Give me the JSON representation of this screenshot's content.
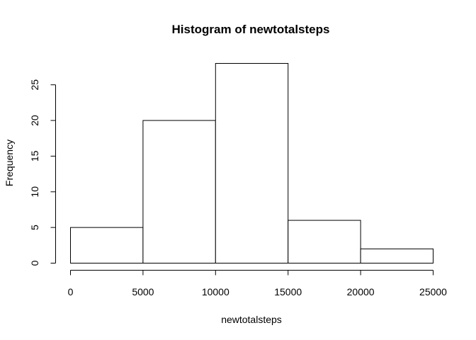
{
  "chart_data": {
    "type": "bar",
    "title": "Histogram of newtotalsteps",
    "xlabel": "newtotalsteps",
    "ylabel": "Frequency",
    "bins": [
      {
        "from": 0,
        "to": 5000,
        "count": 5
      },
      {
        "from": 5000,
        "to": 10000,
        "count": 20
      },
      {
        "from": 10000,
        "to": 15000,
        "count": 28
      },
      {
        "from": 15000,
        "to": 20000,
        "count": 6
      },
      {
        "from": 20000,
        "to": 25000,
        "count": 2
      }
    ],
    "x_ticks": [
      0,
      5000,
      10000,
      15000,
      20000,
      25000
    ],
    "x_tick_labels": [
      "0",
      "5000",
      "10000",
      "15000",
      "20000",
      "25000"
    ],
    "y_ticks": [
      0,
      5,
      10,
      15,
      20,
      25
    ],
    "y_tick_labels": [
      "0",
      "5",
      "10",
      "15",
      "20",
      "25"
    ],
    "xlim": [
      0,
      25000
    ],
    "ylim": [
      0,
      28
    ],
    "grid": false,
    "colors": {
      "bar_fill": "#ffffff",
      "bar_stroke": "#000000"
    }
  }
}
